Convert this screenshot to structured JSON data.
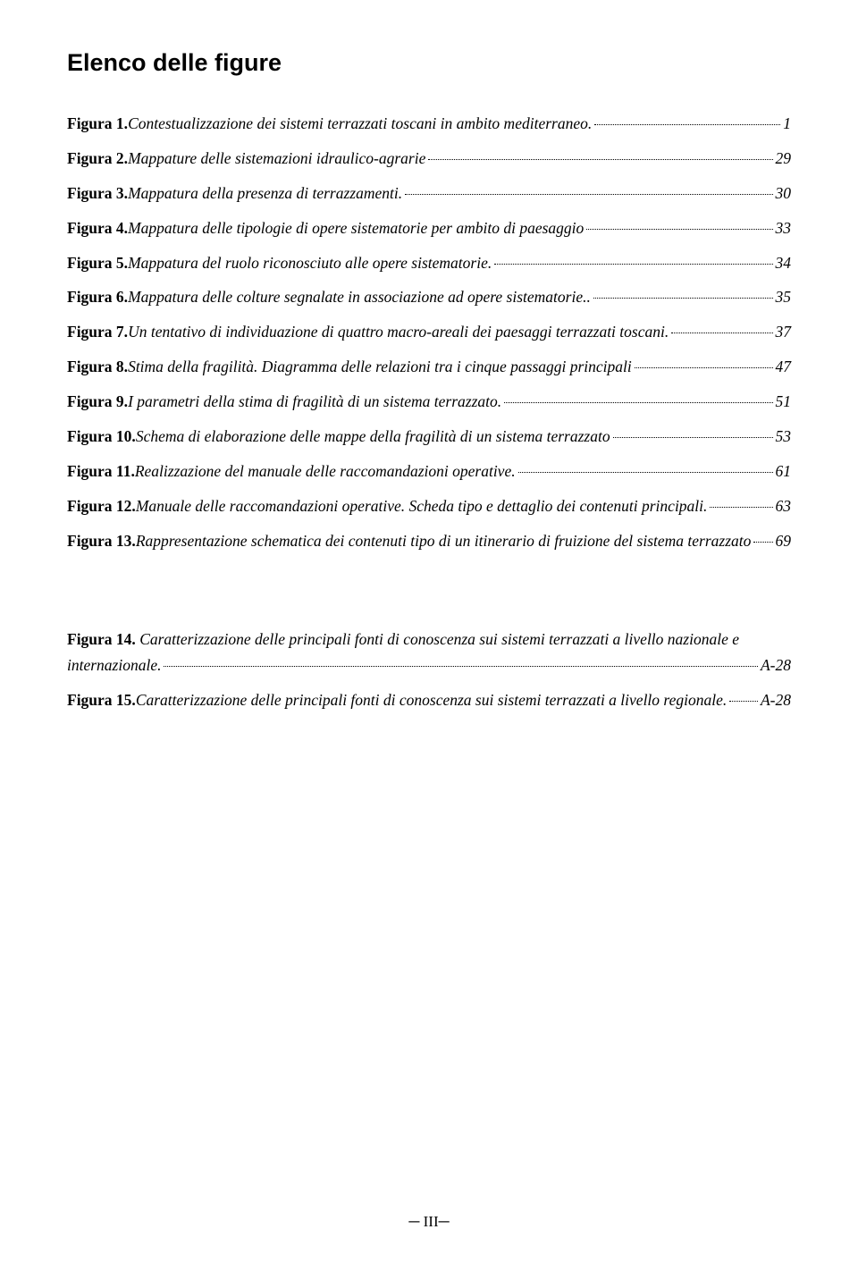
{
  "title": "Elenco delle figure",
  "entries": [
    {
      "label": "Figura 1.",
      "desc": " Contestualizzazione dei sistemi terrazzati toscani in ambito mediterraneo.",
      "page": " 1"
    },
    {
      "label": "Figura 2.",
      "desc": " Mappature delle sistemazioni idraulico-agrarie",
      "page": " 29"
    },
    {
      "label": "Figura 3.",
      "desc": " Mappatura della presenza di terrazzamenti. ",
      "page": " 30"
    },
    {
      "label": "Figura 4.",
      "desc": " Mappatura delle tipologie di opere sistematorie per ambito di paesaggio",
      "page": " 33"
    },
    {
      "label": "Figura 5.",
      "desc": " Mappatura del ruolo riconosciuto alle opere sistematorie. ",
      "page": " 34"
    },
    {
      "label": "Figura 6.",
      "desc": " Mappatura delle colture segnalate in associazione ad opere sistematorie.. ",
      "page": " 35"
    },
    {
      "label": "Figura 7.",
      "desc": " Un tentativo di individuazione di quattro macro-areali dei paesaggi terrazzati toscani. ",
      "page": " 37"
    },
    {
      "label": "Figura 8.",
      "desc": " Stima della fragilità. Diagramma delle relazioni tra i cinque passaggi principali",
      "page": " 47"
    },
    {
      "label": "Figura 9.",
      "desc": " I parametri della stima di fragilità di un sistema terrazzato. ",
      "page": " 51"
    },
    {
      "label": "Figura 10.",
      "desc": " Schema di elaborazione delle mappe della fragilità di un sistema terrazzato",
      "page": " 53"
    },
    {
      "label": "Figura 11.",
      "desc": " Realizzazione del manuale delle raccomandazioni operative. ",
      "page": " 61"
    },
    {
      "label": "Figura 12.",
      "desc": " Manuale delle raccomandazioni operative. Scheda tipo e dettaglio dei contenuti principali.",
      "page": " 63"
    },
    {
      "label": "Figura 13.",
      "desc": " Rappresentazione schematica dei contenuti tipo di un itinerario di fruizione del sistema terrazzato",
      "page": " 69"
    }
  ],
  "entry14": {
    "label": "Figura 14.",
    "desc_line1": " Caratterizzazione delle principali fonti di conoscenza sui sistemi terrazzati a livello nazionale e",
    "desc_line2": "internazionale. ",
    "page": "A-28"
  },
  "entry15": {
    "label": "Figura 15.",
    "desc": " Caratterizzazione delle principali fonti di conoscenza sui sistemi terrazzati a livello regionale.",
    "page": "A-28"
  },
  "footer": "─ III─"
}
